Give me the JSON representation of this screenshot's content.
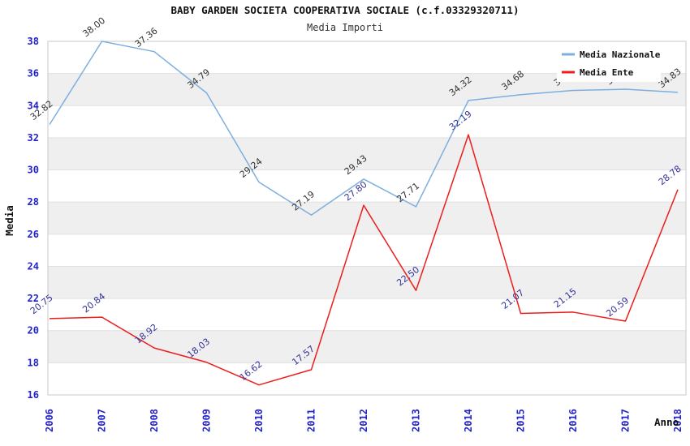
{
  "title": "BABY GARDEN SOCIETA COOPERATIVA SOCIALE (c.f.03329320711)",
  "subtitle": "Media Importi",
  "colors": {
    "band": "#efefef",
    "grid": "#e0e0e0",
    "border": "#c8c8c8",
    "tick_label": "#2323cc",
    "nazionale_line": "#7cafdf",
    "ente_line": "#ee1c1c",
    "nazionale_label": "#333333",
    "ente_label": "#333399",
    "legend_bg": "#ffffff"
  },
  "legend": {
    "position": "top-right",
    "items": [
      {
        "label": "Media Nazionale"
      },
      {
        "label": "Media Ente"
      }
    ]
  },
  "chart_data": {
    "type": "line",
    "x": [
      "2006",
      "2007",
      "2008",
      "2009",
      "2010",
      "2011",
      "2012",
      "2013",
      "2014",
      "2015",
      "2016",
      "2017",
      "2018"
    ],
    "xlabel": "Anno",
    "ylabel": "Media",
    "ylim": [
      16,
      38
    ],
    "ytick_step": 2,
    "grid": "alternating horizontal bands",
    "legend_position": "top-right",
    "series": [
      {
        "name": "Media Nazionale",
        "color": "#7cafdf",
        "label_color": "#333333",
        "values": [
          32.82,
          38.0,
          37.36,
          34.79,
          29.24,
          27.19,
          29.43,
          27.71,
          34.32,
          34.68,
          34.95,
          35.02,
          34.83
        ],
        "labels_hidden_by_legend": [
          "2016",
          "2017"
        ]
      },
      {
        "name": "Media Ente",
        "color": "#ee1c1c",
        "label_color": "#333399",
        "values": [
          20.75,
          20.84,
          18.92,
          18.03,
          16.62,
          17.57,
          27.8,
          22.5,
          32.19,
          21.07,
          21.15,
          20.59,
          28.78
        ]
      }
    ]
  }
}
